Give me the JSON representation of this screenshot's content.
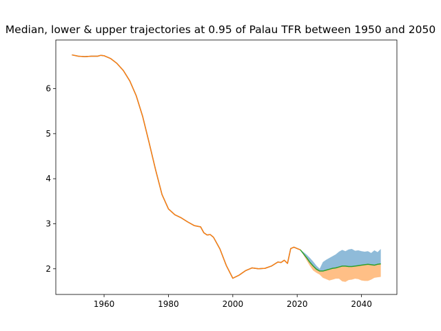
{
  "chart_data": {
    "type": "area",
    "title": "Median, lower & upper trajectories at 0.95 of Palau TFR between 1950 and 2050",
    "xlabel": "",
    "ylabel": "",
    "xlim": [
      1945,
      2051
    ],
    "ylim": [
      1.43,
      7.08
    ],
    "xticks": [
      1960,
      1980,
      2000,
      2020,
      2040
    ],
    "yticks": [
      2,
      3,
      4,
      5,
      6
    ],
    "grid": false,
    "legend": "none",
    "colors": {
      "history": "#1f77b4",
      "history_overlay": "#ff7f0e",
      "upper_band": "#1f77b4",
      "lower_band": "#ff7f0e",
      "median": "#2ca02c"
    },
    "series": [
      {
        "role": "history",
        "x": [
          1950,
          1952,
          1954,
          1956,
          1958,
          1959,
          1960,
          1962,
          1964,
          1966,
          1968,
          1970,
          1972,
          1974,
          1976,
          1978,
          1980,
          1982,
          1984,
          1986,
          1988,
          1990,
          1991,
          1992,
          1993,
          1994,
          1996,
          1998,
          2000,
          2002,
          2004,
          2006,
          2008,
          2010,
          2012,
          2014,
          2015,
          2016,
          2017,
          2018,
          2019,
          2020,
          2021
        ],
        "values": [
          6.75,
          6.72,
          6.71,
          6.72,
          6.72,
          6.74,
          6.73,
          6.67,
          6.56,
          6.4,
          6.17,
          5.84,
          5.38,
          4.8,
          4.2,
          3.65,
          3.33,
          3.2,
          3.13,
          3.04,
          2.96,
          2.93,
          2.8,
          2.75,
          2.76,
          2.7,
          2.44,
          2.07,
          1.79,
          1.86,
          1.96,
          2.02,
          2.0,
          2.01,
          2.06,
          2.15,
          2.14,
          2.19,
          2.12,
          2.45,
          2.48,
          2.45,
          2.42
        ]
      },
      {
        "role": "median",
        "x": [
          2021,
          2022,
          2023,
          2024,
          2025,
          2026,
          2027,
          2028,
          2029,
          2030,
          2031,
          2032,
          2033,
          2034,
          2035,
          2036,
          2037,
          2038,
          2039,
          2040,
          2041,
          2042,
          2043,
          2044,
          2045,
          2046
        ],
        "values": [
          2.42,
          2.33,
          2.24,
          2.14,
          2.06,
          1.99,
          1.95,
          1.95,
          1.97,
          1.99,
          2.01,
          2.02,
          2.04,
          2.06,
          2.06,
          2.05,
          2.05,
          2.06,
          2.07,
          2.08,
          2.09,
          2.1,
          2.09,
          2.08,
          2.1,
          2.11
        ]
      },
      {
        "role": "upper",
        "x": [
          2021,
          2022,
          2023,
          2024,
          2025,
          2026,
          2027,
          2028,
          2029,
          2030,
          2031,
          2032,
          2033,
          2034,
          2035,
          2036,
          2037,
          2038,
          2039,
          2040,
          2041,
          2042,
          2043,
          2044,
          2045,
          2046
        ],
        "values": [
          2.42,
          2.37,
          2.31,
          2.24,
          2.16,
          2.07,
          2.0,
          2.15,
          2.2,
          2.24,
          2.28,
          2.32,
          2.38,
          2.42,
          2.39,
          2.43,
          2.44,
          2.4,
          2.41,
          2.39,
          2.38,
          2.39,
          2.35,
          2.41,
          2.37,
          2.44
        ]
      },
      {
        "role": "lower",
        "x": [
          2021,
          2022,
          2023,
          2024,
          2025,
          2026,
          2027,
          2028,
          2029,
          2030,
          2031,
          2032,
          2033,
          2034,
          2035,
          2036,
          2037,
          2038,
          2039,
          2040,
          2041,
          2042,
          2043,
          2044,
          2045,
          2046
        ],
        "values": [
          2.42,
          2.3,
          2.18,
          2.06,
          1.96,
          1.91,
          1.87,
          1.8,
          1.77,
          1.74,
          1.76,
          1.78,
          1.78,
          1.72,
          1.71,
          1.75,
          1.76,
          1.78,
          1.77,
          1.74,
          1.73,
          1.73,
          1.76,
          1.8,
          1.81,
          1.82
        ]
      }
    ]
  }
}
